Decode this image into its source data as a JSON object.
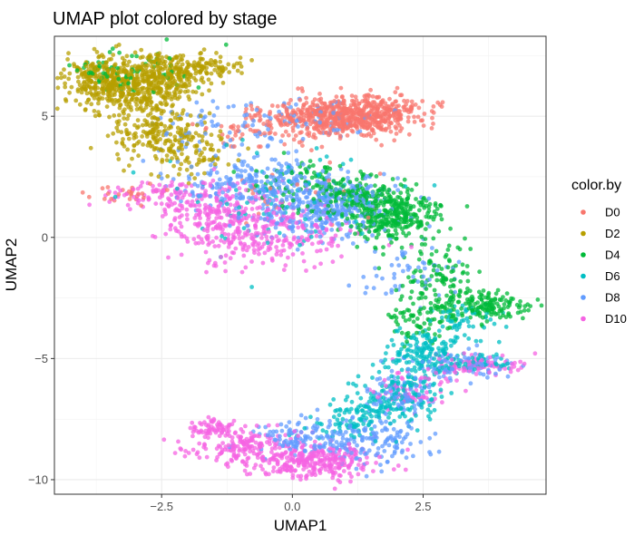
{
  "chart_data": {
    "type": "scatter",
    "title": "UMAP plot colored by stage",
    "xlabel": "UMAP1",
    "ylabel": "UMAP2",
    "xlim": [
      -4.55,
      4.85
    ],
    "ylim": [
      -10.6,
      8.3
    ],
    "x_ticks": [
      -2.5,
      0.0,
      2.5
    ],
    "x_tick_labels": [
      "−2.5",
      "0.0",
      "2.5"
    ],
    "y_ticks": [
      -10,
      -5,
      0,
      5
    ],
    "y_tick_labels": [
      "−10",
      "−5",
      "0",
      "5"
    ],
    "grid": true,
    "legend": {
      "title": "color.by",
      "placement": "right"
    },
    "series": [
      {
        "name": "D0",
        "color": "#F8766D",
        "clusters": [
          {
            "cx": 0.9,
            "cy": 5.0,
            "sx": 0.6,
            "sy": 0.4,
            "n": 480
          },
          {
            "cx": 1.7,
            "cy": 5.1,
            "sx": 0.45,
            "sy": 0.35,
            "n": 180
          },
          {
            "cx": -0.3,
            "cy": 4.8,
            "sx": 0.6,
            "sy": 0.45,
            "n": 60
          },
          {
            "cx": -1.0,
            "cy": 4.3,
            "sx": 0.3,
            "sy": 0.3,
            "n": 25
          },
          {
            "cx": -2.9,
            "cy": 1.8,
            "sx": 0.35,
            "sy": 0.25,
            "n": 30
          },
          {
            "cx": 0.0,
            "cy": 1.5,
            "sx": 0.9,
            "sy": 0.7,
            "n": 25
          }
        ]
      },
      {
        "name": "D2",
        "color": "#B79F00",
        "clusters": [
          {
            "cx": -3.1,
            "cy": 6.3,
            "sx": 0.6,
            "sy": 0.6,
            "n": 520
          },
          {
            "cx": -2.3,
            "cy": 6.9,
            "sx": 0.5,
            "sy": 0.35,
            "n": 160
          },
          {
            "cx": -3.7,
            "cy": 6.6,
            "sx": 0.3,
            "sy": 0.35,
            "n": 90
          },
          {
            "cx": -2.6,
            "cy": 4.3,
            "sx": 0.45,
            "sy": 0.6,
            "n": 180
          },
          {
            "cx": -1.9,
            "cy": 3.5,
            "sx": 0.4,
            "sy": 0.5,
            "n": 80
          },
          {
            "cx": -1.5,
            "cy": 7.0,
            "sx": 0.25,
            "sy": 0.15,
            "n": 40
          }
        ]
      },
      {
        "name": "D4",
        "color": "#00BA38",
        "clusters": [
          {
            "cx": 1.9,
            "cy": 0.9,
            "sx": 0.45,
            "sy": 0.55,
            "n": 320
          },
          {
            "cx": 1.2,
            "cy": 1.7,
            "sx": 0.5,
            "sy": 0.4,
            "n": 150
          },
          {
            "cx": 2.8,
            "cy": -2.0,
            "sx": 0.35,
            "sy": 0.9,
            "n": 140
          },
          {
            "cx": 3.7,
            "cy": -2.9,
            "sx": 0.45,
            "sy": 0.3,
            "n": 140
          },
          {
            "cx": 2.3,
            "cy": -3.5,
            "sx": 0.3,
            "sy": 0.5,
            "n": 50
          },
          {
            "cx": -3.2,
            "cy": 6.8,
            "sx": 0.6,
            "sy": 0.5,
            "n": 70
          },
          {
            "cx": 0.2,
            "cy": 2.3,
            "sx": 0.6,
            "sy": 0.5,
            "n": 60
          }
        ]
      },
      {
        "name": "D6",
        "color": "#00BFC4",
        "clusters": [
          {
            "cx": 2.6,
            "cy": -4.8,
            "sx": 0.4,
            "sy": 0.5,
            "n": 160
          },
          {
            "cx": 2.0,
            "cy": -6.5,
            "sx": 0.45,
            "sy": 0.6,
            "n": 160
          },
          {
            "cx": 1.2,
            "cy": -7.6,
            "sx": 0.5,
            "sy": 0.4,
            "n": 90
          },
          {
            "cx": 3.5,
            "cy": -5.2,
            "sx": 0.35,
            "sy": 0.2,
            "n": 50
          },
          {
            "cx": -0.3,
            "cy": 1.5,
            "sx": 1.0,
            "sy": 1.0,
            "n": 80
          },
          {
            "cx": 3.3,
            "cy": -3.3,
            "sx": 0.4,
            "sy": 0.4,
            "n": 50
          }
        ]
      },
      {
        "name": "D8",
        "color": "#619CFF",
        "clusters": [
          {
            "cx": 0.6,
            "cy": 1.3,
            "sx": 0.7,
            "sy": 0.65,
            "n": 380
          },
          {
            "cx": -0.8,
            "cy": 2.2,
            "sx": 0.7,
            "sy": 0.6,
            "n": 200
          },
          {
            "cx": 1.4,
            "cy": -8.4,
            "sx": 0.55,
            "sy": 0.5,
            "n": 150
          },
          {
            "cx": 0.1,
            "cy": -8.3,
            "sx": 0.5,
            "sy": 0.35,
            "n": 100
          },
          {
            "cx": 2.0,
            "cy": -6.6,
            "sx": 0.35,
            "sy": 0.5,
            "n": 90
          },
          {
            "cx": 3.2,
            "cy": -5.3,
            "sx": 0.45,
            "sy": 0.3,
            "n": 90
          },
          {
            "cx": -1.2,
            "cy": 4.5,
            "sx": 0.8,
            "sy": 0.6,
            "n": 80
          },
          {
            "cx": 0.6,
            "cy": 4.9,
            "sx": 0.5,
            "sy": 0.4,
            "n": 40
          },
          {
            "cx": 2.2,
            "cy": -1.5,
            "sx": 0.5,
            "sy": 0.6,
            "n": 50
          }
        ]
      },
      {
        "name": "D10",
        "color": "#F564E3",
        "clusters": [
          {
            "cx": -0.6,
            "cy": 0.2,
            "sx": 0.75,
            "sy": 0.7,
            "n": 320
          },
          {
            "cx": -1.6,
            "cy": 1.2,
            "sx": 0.55,
            "sy": 0.6,
            "n": 160
          },
          {
            "cx": 0.4,
            "cy": -9.3,
            "sx": 0.6,
            "sy": 0.35,
            "n": 300
          },
          {
            "cx": -0.9,
            "cy": -8.6,
            "sx": 0.5,
            "sy": 0.4,
            "n": 170
          },
          {
            "cx": -1.5,
            "cy": -7.9,
            "sx": 0.25,
            "sy": 0.2,
            "n": 60
          },
          {
            "cx": 3.5,
            "cy": -5.3,
            "sx": 0.45,
            "sy": 0.22,
            "n": 90
          },
          {
            "cx": 2.3,
            "cy": -6.3,
            "sx": 0.35,
            "sy": 0.45,
            "n": 60
          },
          {
            "cx": -2.6,
            "cy": 1.7,
            "sx": 0.45,
            "sy": 0.25,
            "n": 60
          }
        ]
      }
    ]
  }
}
